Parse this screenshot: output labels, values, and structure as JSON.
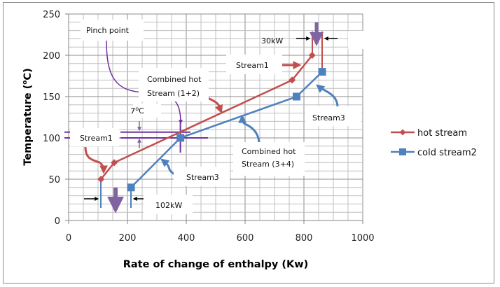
{
  "chart_data": {
    "type": "line",
    "title": "",
    "xlabel": "Rate of change of enthalpy (Kw)",
    "ylabel": "Temperature (°C)",
    "ylabel_parts": {
      "main": "Temperature (",
      "sup": "o",
      "tail": "C)"
    },
    "xlim": [
      0,
      1000
    ],
    "ylim": [
      0,
      250
    ],
    "x_ticks": [
      0,
      200,
      400,
      600,
      800,
      1000
    ],
    "y_ticks": [
      0,
      50,
      100,
      150,
      200,
      250
    ],
    "grid": true,
    "legend_position": "right",
    "series": [
      {
        "name": "hot stream",
        "color": "#c0504d",
        "marker": "diamond",
        "x": [
          110,
          155,
          760,
          828
        ],
        "y": [
          50,
          70,
          170,
          200
        ]
      },
      {
        "name": "cold stream2",
        "color": "#4f81bd",
        "marker": "square",
        "x": [
          212,
          380,
          775,
          862
        ],
        "y": [
          40,
          100,
          150,
          180
        ]
      }
    ],
    "annotations": [
      {
        "id": "pinch",
        "text": "Pinch point",
        "color": "#7030a0"
      },
      {
        "id": "delta-t",
        "text": "7°C",
        "parts": {
          "main": "7",
          "sup": "o",
          "tail": "C"
        }
      },
      {
        "id": "combined-hot-12",
        "lines": [
          "Combined hot",
          "Stream (1+2)"
        ]
      },
      {
        "id": "stream1-top",
        "text": "Stream1"
      },
      {
        "id": "heat-30",
        "text": "30kW"
      },
      {
        "id": "stream3-right",
        "text": "Stream3"
      },
      {
        "id": "stream1-left",
        "text": "Stream1"
      },
      {
        "id": "combined-hot-34",
        "lines": [
          "Combined hot",
          "Stream (3+4)"
        ]
      },
      {
        "id": "stream3-mid",
        "text": "Stream3"
      },
      {
        "id": "heat-102",
        "text": "102kW"
      }
    ],
    "pinch_lines": {
      "hot_temp": 107,
      "cold_temp": 100,
      "x": 380
    }
  }
}
